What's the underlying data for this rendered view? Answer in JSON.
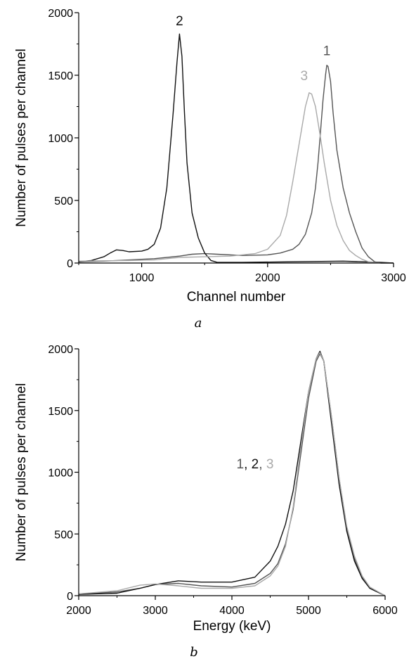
{
  "chart_data": [
    {
      "type": "line",
      "panel_label": "a",
      "xlabel": "Channel number",
      "ylabel": "Number of pulses per channel",
      "xlim": [
        500,
        3000
      ],
      "ylim": [
        0,
        2000
      ],
      "xticks": [
        1000,
        2000,
        3000
      ],
      "yticks": [
        0,
        500,
        1000,
        1500,
        2000
      ],
      "xtick_labels": [
        "1000",
        "2000",
        "3000"
      ],
      "ytick_labels": [
        "0",
        "500",
        "1000",
        "1500",
        "2000"
      ],
      "grid": false,
      "series": [
        {
          "curve_label": "1",
          "color": "#555555",
          "label_at": [
            2470,
            1660
          ],
          "x": [
            500,
            700,
            900,
            1100,
            1300,
            1400,
            1500,
            1600,
            1800,
            2000,
            2100,
            2200,
            2250,
            2300,
            2350,
            2380,
            2400,
            2420,
            2440,
            2460,
            2470,
            2480,
            2500,
            2520,
            2550,
            2600,
            2650,
            2700,
            2750,
            2800,
            2850,
            2900,
            3000
          ],
          "y": [
            10,
            15,
            25,
            35,
            55,
            70,
            75,
            70,
            60,
            65,
            80,
            110,
            150,
            230,
            400,
            600,
            800,
            1050,
            1300,
            1500,
            1580,
            1570,
            1450,
            1200,
            900,
            600,
            400,
            250,
            120,
            50,
            10,
            0,
            0
          ]
        },
        {
          "curve_label": "2",
          "color": "#111111",
          "label_at": [
            1300,
            1900
          ],
          "x": [
            500,
            600,
            700,
            750,
            800,
            850,
            900,
            1000,
            1050,
            1100,
            1150,
            1200,
            1250,
            1280,
            1300,
            1320,
            1340,
            1360,
            1400,
            1450,
            1500,
            1550,
            1600,
            1800,
            2200,
            2600,
            2900,
            3000
          ],
          "y": [
            10,
            20,
            50,
            80,
            105,
            100,
            90,
            95,
            110,
            150,
            280,
            600,
            1200,
            1600,
            1830,
            1650,
            1200,
            800,
            400,
            200,
            80,
            20,
            5,
            5,
            10,
            15,
            5,
            0
          ]
        },
        {
          "curve_label": "3",
          "color": "#a9a9a9",
          "label_at": [
            2290,
            1460
          ],
          "x": [
            500,
            700,
            900,
            1100,
            1300,
            1500,
            1700,
            1900,
            2000,
            2100,
            2150,
            2200,
            2250,
            2300,
            2330,
            2350,
            2380,
            2420,
            2450,
            2500,
            2550,
            2600,
            2650,
            2700,
            2750,
            2800,
            2850,
            2900,
            3000
          ],
          "y": [
            15,
            18,
            20,
            25,
            45,
            50,
            55,
            75,
            110,
            220,
            380,
            650,
            950,
            1250,
            1360,
            1350,
            1250,
            1000,
            800,
            500,
            300,
            180,
            100,
            60,
            30,
            10,
            5,
            0,
            0
          ]
        }
      ]
    },
    {
      "type": "line",
      "panel_label": "b",
      "xlabel": "Energy (keV)",
      "ylabel": "Number of pulses per channel",
      "xlim": [
        2000,
        6000
      ],
      "ylim": [
        0,
        2000
      ],
      "xticks": [
        2000,
        3000,
        4000,
        5000,
        6000
      ],
      "yticks": [
        0,
        500,
        1000,
        1500,
        2000
      ],
      "xtick_labels": [
        "2000",
        "3000",
        "4000",
        "5000",
        "6000"
      ],
      "ytick_labels": [
        "0",
        "500",
        "1000",
        "1500",
        "2000"
      ],
      "grid": false,
      "annotation": {
        "parts": [
          {
            "text": "1",
            "color": "#555555"
          },
          {
            "text": ", ",
            "color": "#111111"
          },
          {
            "text": "2",
            "color": "#111111"
          },
          {
            "text": ", ",
            "color": "#555555"
          },
          {
            "text": "3",
            "color": "#a9a9a9"
          }
        ],
        "at": [
          4060,
          1030
        ]
      },
      "series": [
        {
          "curve_label": "1",
          "color": "#555555",
          "x": [
            2000,
            2500,
            2800,
            3000,
            3300,
            3600,
            4000,
            4300,
            4500,
            4600,
            4700,
            4800,
            4900,
            5000,
            5100,
            5150,
            5200,
            5300,
            5400,
            5500,
            5600,
            5700,
            5800,
            6000
          ],
          "y": [
            15,
            30,
            60,
            90,
            100,
            80,
            70,
            100,
            180,
            260,
            420,
            700,
            1150,
            1600,
            1900,
            1960,
            1900,
            1450,
            950,
            550,
            300,
            150,
            60,
            0
          ]
        },
        {
          "curve_label": "2",
          "color": "#111111",
          "x": [
            2000,
            2500,
            2800,
            3000,
            3200,
            3300,
            3600,
            4000,
            4300,
            4500,
            4600,
            4700,
            4800,
            4900,
            5000,
            5100,
            5150,
            5200,
            5300,
            5400,
            5500,
            5600,
            5700,
            5800,
            6000
          ],
          "y": [
            10,
            20,
            60,
            90,
            110,
            120,
            110,
            110,
            150,
            280,
            400,
            580,
            850,
            1250,
            1650,
            1920,
            1980,
            1900,
            1400,
            900,
            520,
            280,
            140,
            60,
            0
          ]
        },
        {
          "curve_label": "3",
          "color": "#a9a9a9",
          "x": [
            2000,
            2500,
            2800,
            3000,
            3300,
            3600,
            4000,
            4300,
            4500,
            4600,
            4700,
            4800,
            4900,
            5000,
            5100,
            5150,
            5200,
            5300,
            5400,
            5500,
            5600,
            5700,
            5800,
            6000
          ],
          "y": [
            15,
            40,
            85,
            95,
            80,
            60,
            60,
            80,
            160,
            240,
            400,
            720,
            1200,
            1650,
            1920,
            1970,
            1900,
            1450,
            950,
            560,
            320,
            160,
            70,
            0
          ]
        }
      ]
    }
  ]
}
